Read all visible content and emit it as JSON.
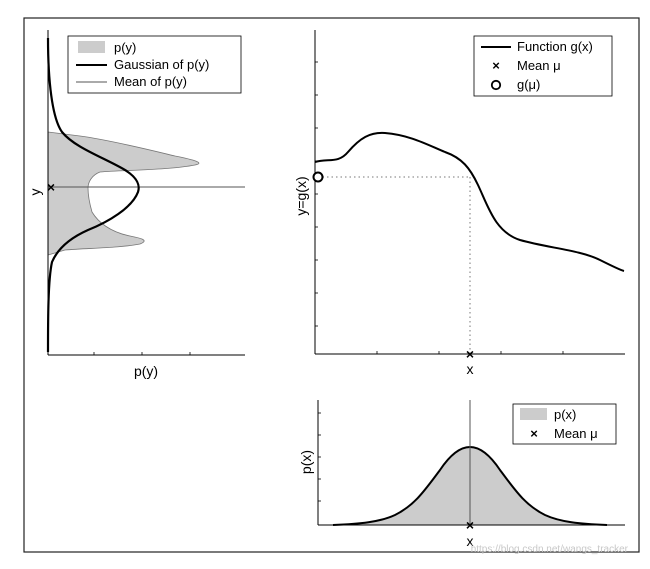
{
  "legends": {
    "py_panel": {
      "fill": "p(y)",
      "gaussian": "Gaussian of p(y)",
      "mean": "Mean of p(y)"
    },
    "g_panel": {
      "function": "Function g(x)",
      "mean": "Mean μ",
      "g_mu": "g(μ)"
    },
    "px_panel": {
      "fill": "p(x)",
      "mean": "Mean μ"
    }
  },
  "labels": {
    "py_xlabel": "p(y)",
    "py_ylabel": "y",
    "g_xlabel": "x",
    "g_ylabel": "y=g(x)",
    "px_ylabel": "p(x)",
    "px_xlabel": "x"
  },
  "watermark": "https://blog.csdn.net/wangs_tracker",
  "colors": {
    "fill_gray": "#cccccc",
    "line": "#000000",
    "thin_line": "#555555"
  }
}
